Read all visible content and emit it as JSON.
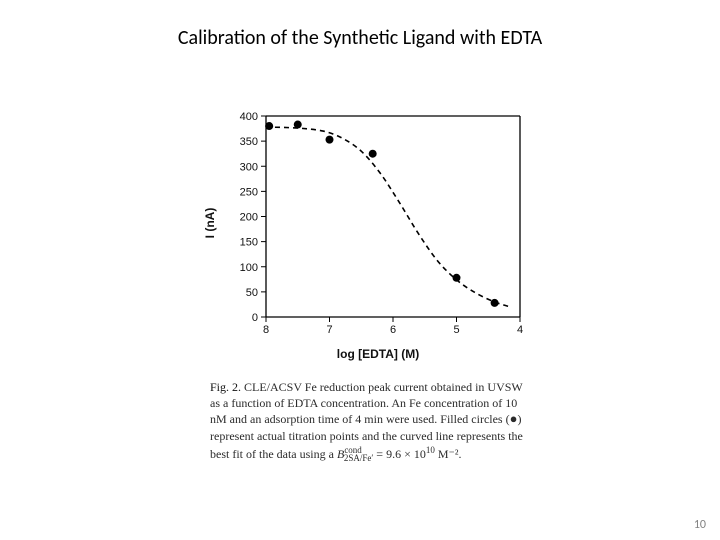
{
  "title": "Calibration of the Synthetic Ligand with EDTA",
  "page_number": "10",
  "chart": {
    "type": "scatter-with-fit",
    "xlabel": "log [EDTA] (M)",
    "ylabel": "I (nA)",
    "xlim": [
      8,
      4
    ],
    "ylim": [
      0,
      400
    ],
    "xticks": [
      8,
      7,
      6,
      5,
      4
    ],
    "yticks": [
      0,
      50,
      100,
      150,
      200,
      250,
      300,
      350,
      400
    ],
    "tick_len": 5,
    "axis_stroke_width": 1.3,
    "axis_color": "#000000",
    "background_color": "#ffffff",
    "marker_style": "filled-circle",
    "marker_radius": 4.0,
    "marker_color": "#000000",
    "curve_style": "dashed",
    "curve_dash": "5,4",
    "curve_width": 1.6,
    "curve_color": "#000000",
    "points": [
      {
        "x": 7.95,
        "y": 380
      },
      {
        "x": 7.5,
        "y": 383
      },
      {
        "x": 7.0,
        "y": 353
      },
      {
        "x": 6.32,
        "y": 325
      },
      {
        "x": 5.0,
        "y": 78
      },
      {
        "x": 4.4,
        "y": 28
      }
    ],
    "fit_curve": [
      {
        "x": 8.0,
        "y": 378
      },
      {
        "x": 7.5,
        "y": 376
      },
      {
        "x": 7.1,
        "y": 370
      },
      {
        "x": 6.8,
        "y": 356
      },
      {
        "x": 6.5,
        "y": 330
      },
      {
        "x": 6.2,
        "y": 286
      },
      {
        "x": 5.9,
        "y": 228
      },
      {
        "x": 5.6,
        "y": 166
      },
      {
        "x": 5.3,
        "y": 112
      },
      {
        "x": 5.0,
        "y": 74
      },
      {
        "x": 4.7,
        "y": 48
      },
      {
        "x": 4.4,
        "y": 30
      },
      {
        "x": 4.15,
        "y": 20
      }
    ]
  },
  "caption": {
    "lead": "Fig. 2.",
    "line1": "CLE/ACSV Fe reduction peak current obtained in UVSW",
    "line2": "as a function of EDTA concentration. An Fe concentration of 10",
    "line3_a": "nM and an adsorption time of 4 min were used. Filled circles (",
    "line3_b": ")",
    "line4": "represent actual titration points and the curved line represents the",
    "line5_a": "best fit of the data using a ",
    "b_symbol": "B",
    "b_sup": "cond",
    "b_sub": "2SA/Fe′",
    "eq_mid": " = 9.6 × 10",
    "eq_exp": "10",
    "eq_tail": " M⁻²."
  }
}
